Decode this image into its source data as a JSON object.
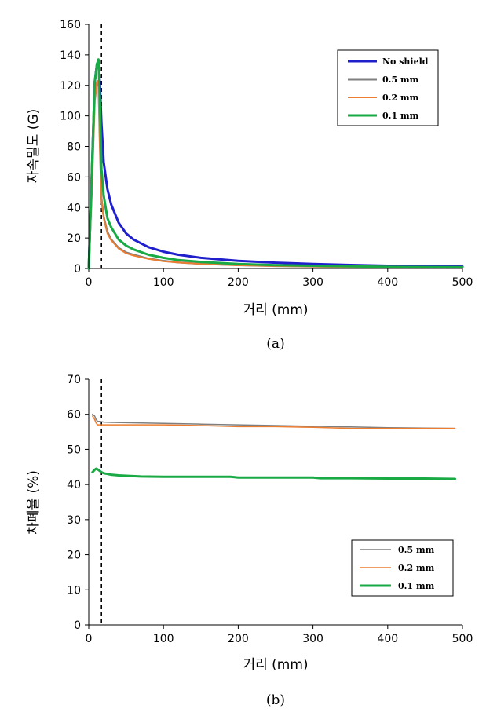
{
  "chart_data": [
    {
      "type": "line",
      "caption": "(a)",
      "xlabel": "거리 (mm)",
      "ylabel": "자속밀도 (G)",
      "xlim": [
        0,
        500
      ],
      "ylim": [
        0,
        160
      ],
      "xticks": [
        "0",
        "100",
        "200",
        "300",
        "400",
        "500"
      ],
      "yticks": [
        "0",
        "20",
        "40",
        "60",
        "80",
        "100",
        "120",
        "140",
        "160"
      ],
      "grid": false,
      "legend_position": "top-right",
      "reference_line_x": 17,
      "series": [
        {
          "name": "No shield",
          "color": "#1f1fcc",
          "x": [
            0,
            4,
            8,
            11,
            13,
            15,
            17,
            20,
            25,
            30,
            40,
            50,
            60,
            80,
            100,
            120,
            150,
            200,
            250,
            300,
            350,
            400,
            450,
            500
          ],
          "y": [
            0,
            60,
            122,
            134,
            136,
            120,
            95,
            70,
            52,
            42,
            30,
            23,
            19,
            14,
            11,
            9,
            7,
            5,
            3.8,
            3,
            2.3,
            1.8,
            1.5,
            1.3
          ]
        },
        {
          "name": "0.5 mm",
          "color": "#7f7f7f",
          "x": [
            0,
            4,
            8,
            11,
            13,
            15,
            17,
            20,
            25,
            30,
            40,
            50,
            60,
            80,
            100,
            120,
            150,
            200,
            250,
            300,
            350,
            400,
            450,
            500
          ],
          "y": [
            0,
            50,
            110,
            122,
            123,
            80,
            46,
            34,
            24,
            19,
            13.5,
            10.5,
            9,
            6.5,
            5,
            4,
            3.1,
            2.2,
            1.6,
            1.3,
            1,
            0.8,
            0.7,
            0.6
          ]
        },
        {
          "name": "0.2 mm",
          "color": "#ed7d31",
          "x": [
            0,
            4,
            8,
            11,
            13,
            15,
            17,
            20,
            25,
            30,
            40,
            50,
            60,
            80,
            100,
            120,
            150,
            200,
            250,
            300,
            350,
            400,
            450,
            500
          ],
          "y": [
            0,
            50,
            110,
            122,
            123,
            80,
            45,
            33,
            23,
            18.5,
            13,
            10,
            8.5,
            6.3,
            4.8,
            3.9,
            3,
            2.1,
            1.6,
            1.3,
            1,
            0.8,
            0.7,
            0.6
          ]
        },
        {
          "name": "0.1 mm",
          "color": "#1aaa45",
          "x": [
            0,
            4,
            8,
            11,
            13,
            15,
            17,
            20,
            25,
            30,
            40,
            50,
            60,
            80,
            100,
            120,
            150,
            200,
            250,
            300,
            350,
            400,
            450,
            500
          ],
          "y": [
            0,
            60,
            122,
            134,
            137,
            110,
            65,
            48,
            33,
            27,
            19,
            15,
            12.5,
            9,
            7,
            5.5,
            4.3,
            3,
            2.2,
            1.8,
            1.4,
            1.1,
            1,
            0.9
          ]
        }
      ]
    },
    {
      "type": "line",
      "caption": "(b)",
      "xlabel": "거리 (mm)",
      "ylabel": "차폐율 (%)",
      "xlim": [
        0,
        500
      ],
      "ylim": [
        0,
        70
      ],
      "xticks": [
        "0",
        "100",
        "200",
        "300",
        "400",
        "500"
      ],
      "yticks": [
        "0",
        "10",
        "20",
        "30",
        "40",
        "50",
        "60",
        "70"
      ],
      "grid": false,
      "legend_position": "bottom-right",
      "reference_line_x": 17,
      "series": [
        {
          "name": "0.5 mm",
          "color": "#7f7f7f",
          "x": [
            5,
            8,
            10,
            12,
            15,
            20,
            30,
            50,
            100,
            150,
            200,
            250,
            300,
            350,
            400,
            450,
            490
          ],
          "y": [
            60,
            59.5,
            58.5,
            58,
            58,
            57.8,
            57.7,
            57.6,
            57.4,
            57.2,
            57,
            56.8,
            56.6,
            56.4,
            56.2,
            56.1,
            56
          ]
        },
        {
          "name": "0.2 mm",
          "color": "#ed7d31",
          "x": [
            5,
            8,
            10,
            12,
            15,
            20,
            30,
            50,
            100,
            150,
            200,
            250,
            300,
            350,
            400,
            450,
            490
          ],
          "y": [
            59.5,
            58.5,
            57.5,
            57,
            57,
            57,
            57,
            57,
            57,
            56.8,
            56.5,
            56.5,
            56.3,
            56,
            56,
            56,
            56
          ]
        },
        {
          "name": "0.1 mm",
          "color": "#1aaa45",
          "x": [
            5,
            8,
            10,
            12,
            14,
            17,
            20,
            25,
            30,
            40,
            50,
            70,
            100,
            150,
            190,
            200,
            250,
            300,
            310,
            350,
            400,
            450,
            490
          ],
          "y": [
            43.5,
            44.2,
            44.5,
            44.3,
            44,
            43.5,
            43.2,
            43,
            42.8,
            42.6,
            42.5,
            42.3,
            42.2,
            42.2,
            42.2,
            42,
            42,
            42,
            41.8,
            41.8,
            41.7,
            41.7,
            41.6
          ]
        }
      ]
    }
  ]
}
